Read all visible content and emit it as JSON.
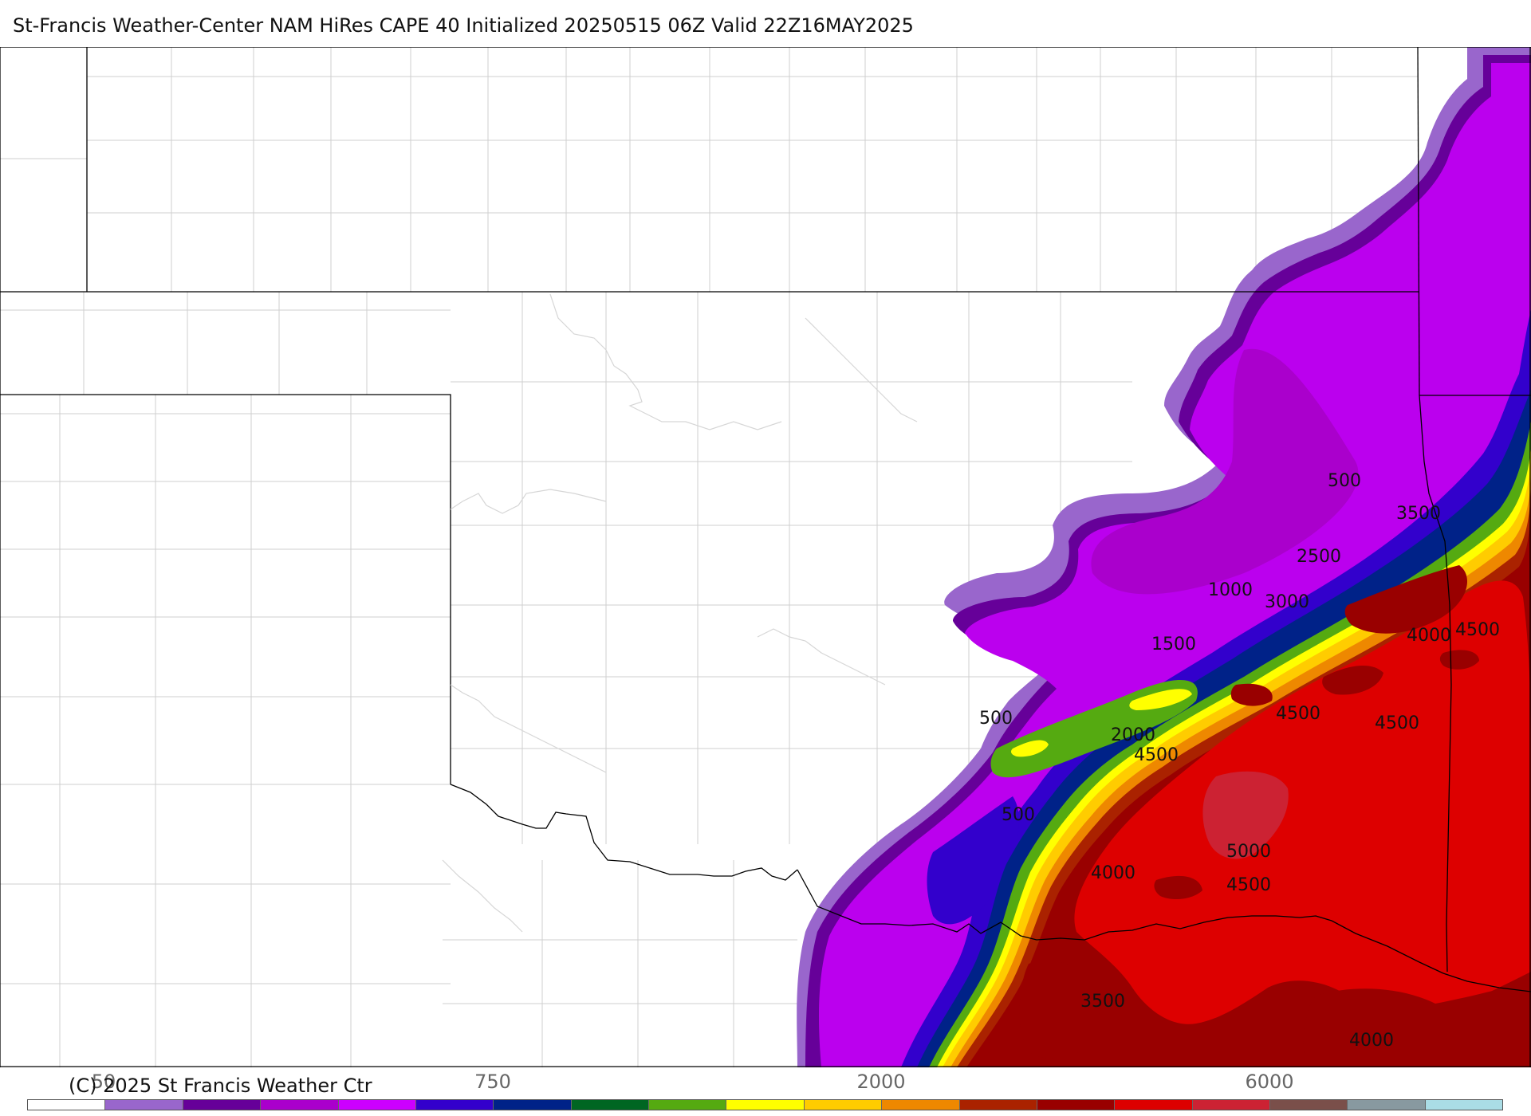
{
  "header": {
    "title": "St-Francis Weather-Center NAM HiRes CAPE  40 Initialized 20250515 06Z Valid 22Z16MAY2025"
  },
  "footer": {
    "copyright": "(C) 2025 St Francis Weather Ctr"
  },
  "colorbar": {
    "tick_labels": [
      "50",
      "750",
      "2000",
      "6000"
    ],
    "colors": [
      "#ffffff",
      "#9966cc",
      "#660099",
      "#aa00cc",
      "#cc00ff",
      "#3300cc",
      "#002288",
      "#006622",
      "#55aa11",
      "#ffff00",
      "#ffcc00",
      "#ee8800",
      "#aa2200",
      "#990000",
      "#dd0000",
      "#cc2233",
      "#7a4f4a",
      "#8899a0",
      "#aadde6"
    ]
  },
  "contour_labels": [
    "500",
    "3500",
    "2500",
    "1000",
    "3000",
    "4000",
    "4500",
    "1500",
    "500",
    "2000",
    "4500",
    "4500",
    "4500",
    "500",
    "5000",
    "4000",
    "4500",
    "3500",
    "4000"
  ],
  "legend_colors": {
    "white": "#ffffff",
    "light_purple": "#9966cc",
    "dark_purple": "#660099",
    "magenta": "#aa00cc",
    "bright_magenta": "#cc00ff",
    "blue": "#3300cc",
    "navy": "#002288",
    "dark_green": "#006622",
    "green": "#55aa11",
    "yellow": "#ffff00",
    "gold": "#ffcc00",
    "orange": "#ee8800",
    "rust": "#aa2200",
    "dark_red": "#990000",
    "red": "#dd0000",
    "crimson": "#cc2233"
  }
}
